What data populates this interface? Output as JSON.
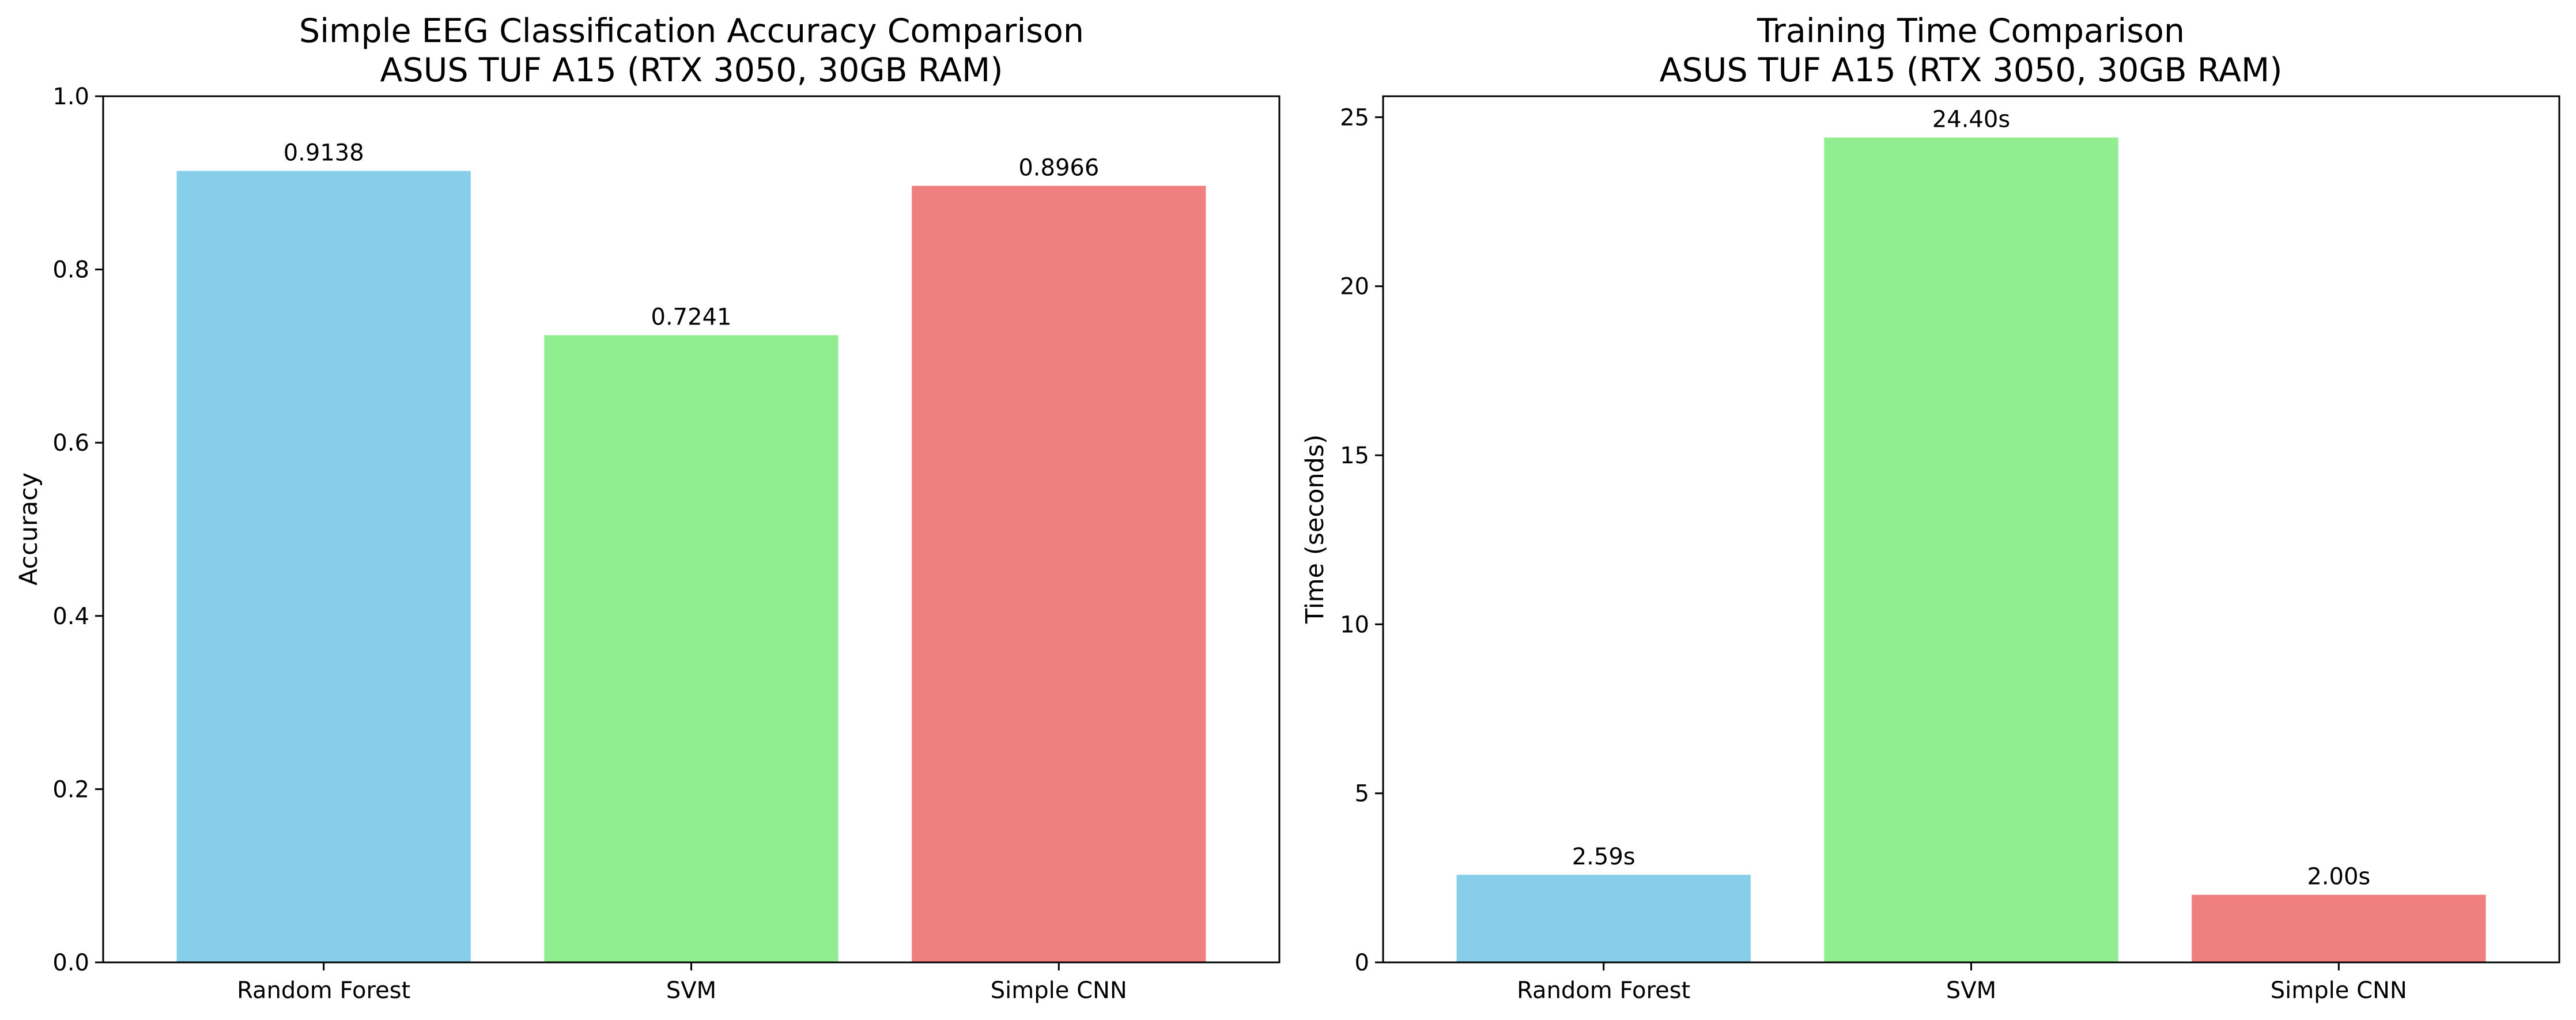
{
  "colors": {
    "random_forest": "#87CEEB",
    "svm": "#90EE90",
    "simple_cnn": "#F08080",
    "axes": "#000000",
    "background": "#ffffff"
  },
  "chart_data": [
    {
      "type": "bar",
      "title": "Simple EEG Classification Accuracy Comparison",
      "subtitle": "ASUS TUF A15 (RTX 3050, 30GB RAM)",
      "xlabel": "",
      "ylabel": "Accuracy",
      "ylim": [
        0,
        1.0
      ],
      "yticks": [
        0.0,
        0.2,
        0.4,
        0.6,
        0.8,
        1.0
      ],
      "ytick_labels": [
        "0.0",
        "0.2",
        "0.4",
        "0.6",
        "0.8",
        "1.0"
      ],
      "categories": [
        "Random Forest",
        "SVM",
        "Simple CNN"
      ],
      "values": [
        0.9138,
        0.7241,
        0.8966
      ],
      "data_labels": [
        "0.9138",
        "0.7241",
        "0.8966"
      ],
      "grid": false,
      "legend": false
    },
    {
      "type": "bar",
      "title": "Training Time Comparison",
      "subtitle": "ASUS TUF A15 (RTX 3050, 30GB RAM)",
      "xlabel": "",
      "ylabel": "Time (seconds)",
      "ylim": [
        0,
        25.62
      ],
      "yticks": [
        0,
        5,
        10,
        15,
        20,
        25
      ],
      "ytick_labels": [
        "0",
        "5",
        "10",
        "15",
        "20",
        "25"
      ],
      "categories": [
        "Random Forest",
        "SVM",
        "Simple CNN"
      ],
      "values": [
        2.59,
        24.4,
        2.0
      ],
      "data_labels": [
        "2.59s",
        "24.40s",
        "2.00s"
      ],
      "grid": false,
      "legend": false
    }
  ]
}
